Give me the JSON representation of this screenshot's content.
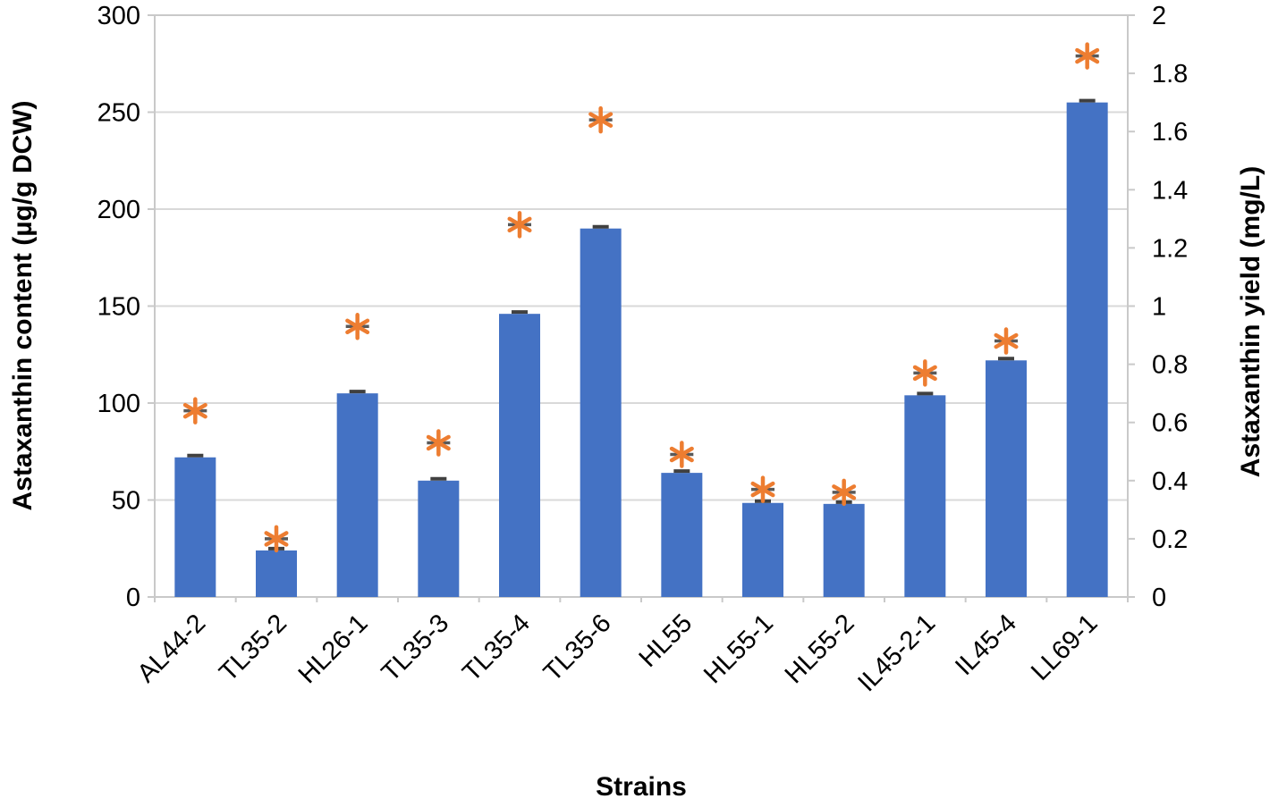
{
  "figure": {
    "title": "",
    "xlabel": "Strains",
    "ylabel_left": "Astaxanthin content (µg/g DCW)",
    "ylabel_right": "Astaxanthin yield (mg/L)"
  },
  "chart_data": {
    "type": "bar",
    "subtype": "bar-with-scatter-overlay-dual-axis",
    "title": "",
    "xlabel": "Strains",
    "ylabel_left": "Astaxanthin content (µg/g DCW)",
    "ylabel_right": "Astaxanthin yield (mg/L)",
    "categories": [
      "AL44-2",
      "TL35-2",
      "HL26-1",
      "TL35-3",
      "TL35-4",
      "TL35-6",
      "HL55",
      "HL55-1",
      "HL55-2",
      "IL45-2-1",
      "IL45-4",
      "LL69-1"
    ],
    "series": [
      {
        "name": "Astaxanthin content",
        "type": "bar",
        "axis": "left",
        "color": "#4472C4",
        "values": [
          72,
          24,
          105,
          60,
          146,
          190,
          64,
          48.5,
          48,
          104,
          122,
          255
        ]
      },
      {
        "name": "Astaxanthin yield",
        "type": "scatter",
        "marker": "asterisk",
        "axis": "right",
        "color": "#ED7D31",
        "values": [
          0.64,
          0.2,
          0.93,
          0.53,
          1.28,
          1.64,
          0.49,
          0.37,
          0.36,
          0.77,
          0.88,
          1.86
        ]
      }
    ],
    "left_axis": {
      "min": 0,
      "max": 300,
      "step": 50,
      "ticks": [
        0,
        50,
        100,
        150,
        200,
        250,
        300
      ]
    },
    "right_axis": {
      "min": 0,
      "max": 2,
      "step": 0.2,
      "ticks": [
        0,
        0.2,
        0.4,
        0.6,
        0.8,
        1,
        1.2,
        1.4,
        1.6,
        1.8,
        2
      ]
    },
    "grid": "horizontal",
    "legend": "none",
    "error_bars_shown": true,
    "colors": {
      "bar": "#4472C4",
      "marker": "#ED7D31",
      "gridline": "#D9D9D9",
      "plot_border": "#C9C9C9",
      "error_bar": "#404040",
      "marker_error_bar": "#595959",
      "text": "#000000"
    }
  }
}
